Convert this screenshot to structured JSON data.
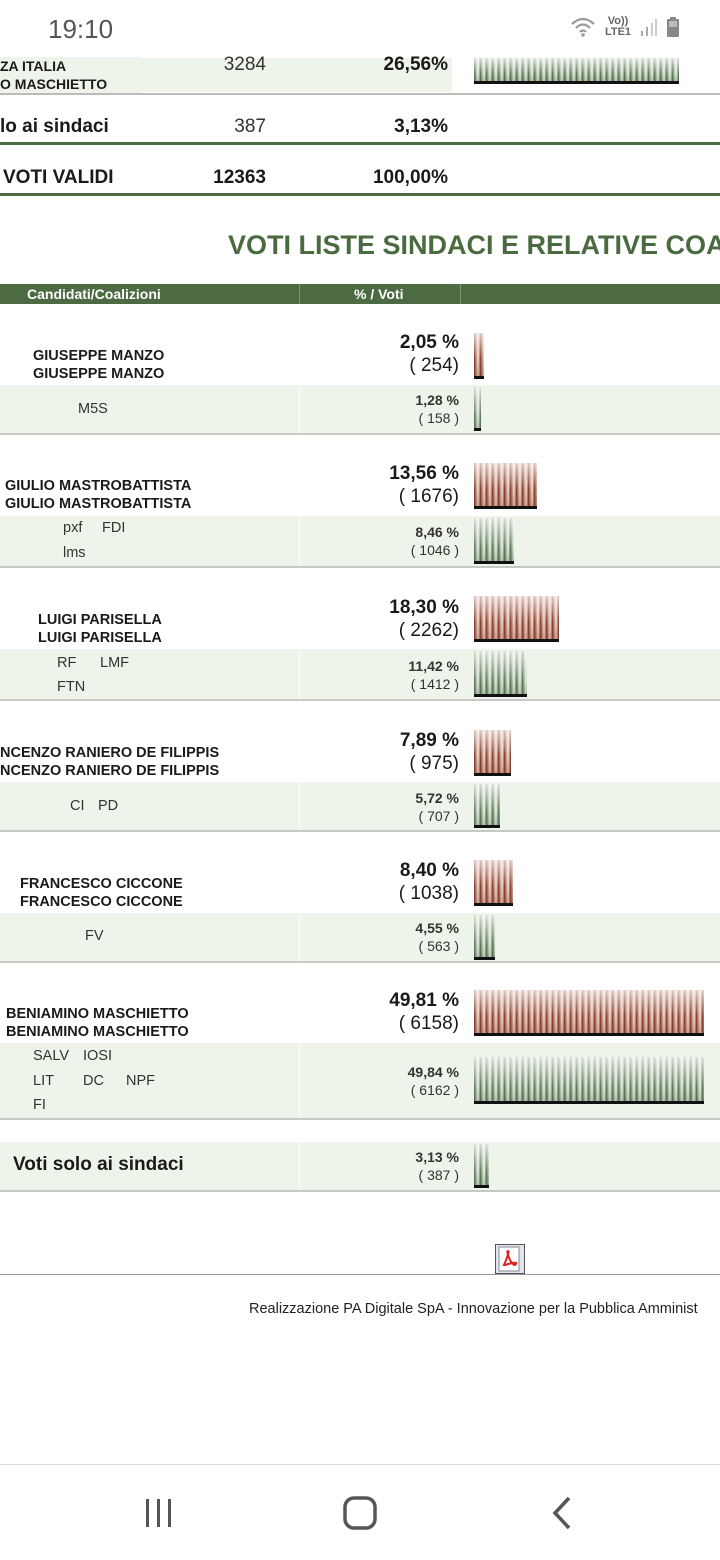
{
  "status_bar": {
    "time": "19:10",
    "network": "Vo)) LTE1"
  },
  "summary": {
    "row_top": {
      "name_line1": "ZA ITALIA",
      "name_line2": "O MASCHIETTO",
      "votes": "3284",
      "percent": "26,56%"
    },
    "row_sindaci": {
      "name": "lo ai sindaci",
      "votes": "387",
      "percent": "3,13%"
    },
    "row_total": {
      "name": "VOTI VALIDI",
      "votes": "12363",
      "percent": "100,00%"
    }
  },
  "section_title": "VOTI LISTE SINDACI E RELATIVE COALI",
  "table_header": {
    "col_candidates": "Candidati/Coalizioni",
    "col_percent": "% / Voti"
  },
  "candidates": [
    {
      "name1": "GIUSEPPE MANZO",
      "name2": "GIUSEPPE MANZO",
      "pct": "2,05 %",
      "votes": "( 254)",
      "list_names": [
        "M5S"
      ],
      "list_pct": "1,28 %",
      "list_votes": "( 158 )"
    },
    {
      "name1": "GIULIO MASTROBATTISTA",
      "name2": "GIULIO MASTROBATTISTA",
      "pct": "13,56 %",
      "votes": "( 1676)",
      "list_names": [
        "pxf",
        "FDI",
        "lms"
      ],
      "list_pct": "8,46 %",
      "list_votes": "( 1046 )"
    },
    {
      "name1": "LUIGI PARISELLA",
      "name2": "LUIGI PARISELLA",
      "pct": "18,30 %",
      "votes": "( 2262)",
      "list_names": [
        "RF",
        "LMF",
        "FTN"
      ],
      "list_pct": "11,42 %",
      "list_votes": "( 1412 )"
    },
    {
      "name1": "NCENZO RANIERO DE FILIPPIS",
      "name2": "NCENZO RANIERO DE FILIPPIS",
      "pct": "7,89 %",
      "votes": "( 975)",
      "list_names": [
        "CI",
        "PD"
      ],
      "list_pct": "5,72 %",
      "list_votes": "( 707 )"
    },
    {
      "name1": "FRANCESCO CICCONE",
      "name2": "FRANCESCO CICCONE",
      "pct": "8,40 %",
      "votes": "( 1038)",
      "list_names": [
        "FV"
      ],
      "list_pct": "4,55 %",
      "list_votes": "( 563 )"
    },
    {
      "name1": "BENIAMINO MASCHIETTO",
      "name2": "BENIAMINO MASCHIETTO",
      "pct": "49,81 %",
      "votes": "( 6158)",
      "list_names": [
        "SALV",
        "IOSI",
        "LIT",
        "DC",
        "NPF",
        "FI"
      ],
      "list_pct": "49,84 %",
      "list_votes": "( 6162 )"
    }
  ],
  "solo_sindaci": {
    "label": "Voti solo ai sindaci",
    "pct": "3,13 %",
    "votes": "( 387 )"
  },
  "footer": "Realizzazione PA Digitale SpA - Innovazione per la Pubblica Amminist",
  "colors": {
    "accent_green": "#4d6b43",
    "title_green": "#4a6a3f",
    "row_bg": "#eef4ea"
  }
}
